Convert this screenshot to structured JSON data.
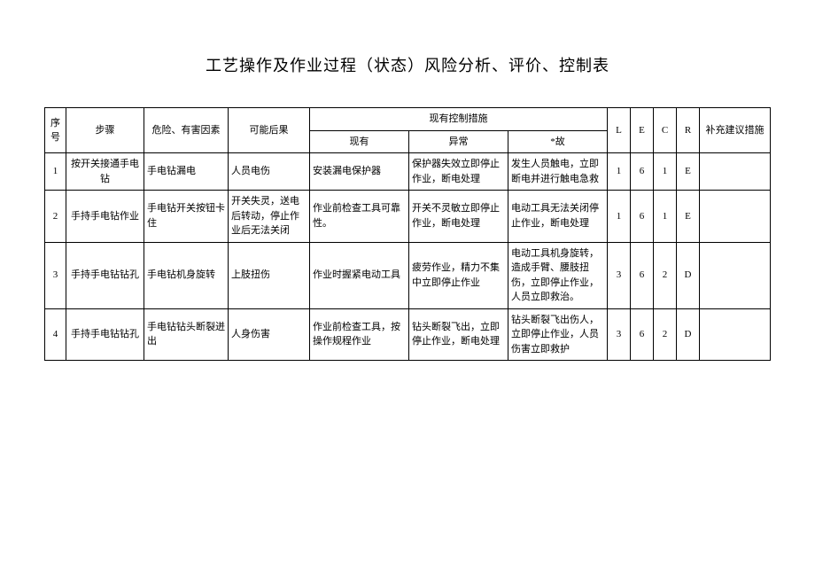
{
  "title": "工艺操作及作业过程（状态）风险分析、评价、控制表",
  "headers": {
    "seq": "序号",
    "step": "步骤",
    "factor": "危险、有害因素",
    "consequence": "可能后果",
    "control_group": "现有控制措施",
    "current": "现有",
    "abnormal": "异常",
    "accident": "*故",
    "l": "L",
    "e": "E",
    "c": "C",
    "r": "R",
    "suggest": "补充建议措施"
  },
  "rows": [
    {
      "seq": "1",
      "step": "按开关接通手电钻",
      "factor": "手电钻漏电",
      "consequence": "人员电伤",
      "current": "安装漏电保护器",
      "abnormal": "保护器失效立即停止作业，断电处理",
      "accident": "发生人员触电，立即断电并进行触电急救",
      "l": "1",
      "e": "6",
      "c": "1",
      "r": "E",
      "suggest": ""
    },
    {
      "seq": "2",
      "step": "手持手电钻作业",
      "factor": "手电钻开关按钮卡住",
      "consequence": "开关失灵，送电后转动，停止作业后无法关闭",
      "current": "作业前检查工具可靠性。",
      "abnormal": "开关不灵敏立即停止作业，断电处理",
      "accident": "电动工具无法关闭停止作业，断电处理",
      "l": "1",
      "e": "6",
      "c": "1",
      "r": "E",
      "suggest": ""
    },
    {
      "seq": "3",
      "step": "手持手电钻钻孔",
      "factor": "手电钻机身旋转",
      "consequence": "上肢扭伤",
      "current": "作业时握紧电动工具",
      "abnormal": "疲劳作业，精力不集中立即停止作业",
      "accident": "电动工具机身旋转，造成手臂、腰肢扭伤，立即停止作业，人员立即救治。",
      "l": "3",
      "e": "6",
      "c": "2",
      "r": "D",
      "suggest": ""
    },
    {
      "seq": "4",
      "step": "手持手电钻钻孔",
      "factor": "手电钻钻头断裂迸出",
      "consequence": "人身伤害",
      "current": "作业前检查工具，按操作规程作业",
      "abnormal": "钻头断裂飞出，立即停止作业，断电处理",
      "accident": "钻头断裂飞出伤人，立即停止作业，人员伤害立即救护",
      "l": "3",
      "e": "6",
      "c": "2",
      "r": "D",
      "suggest": ""
    }
  ]
}
